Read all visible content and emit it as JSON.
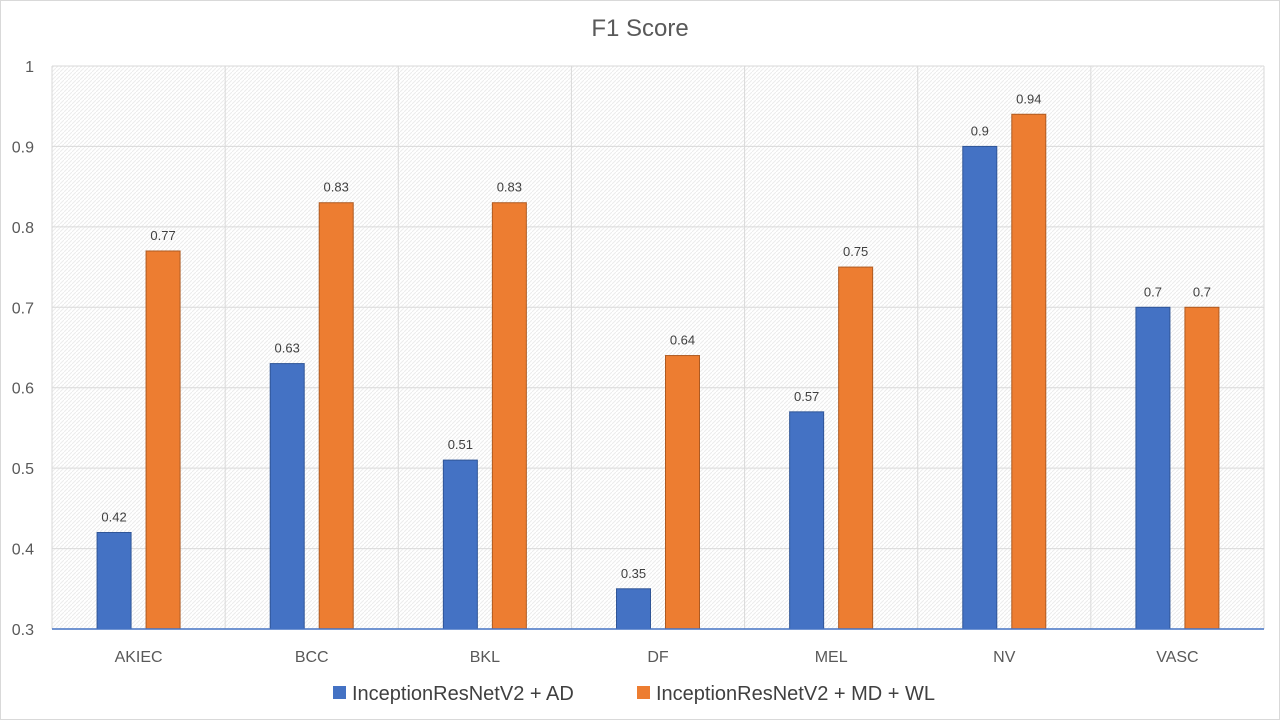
{
  "chart_data": {
    "type": "bar",
    "title": "F1 Score",
    "xlabel": "",
    "ylabel": "",
    "categories": [
      "AKIEC",
      "BCC",
      "BKL",
      "DF",
      "MEL",
      "NV",
      "VASC"
    ],
    "series": [
      {
        "name": "InceptionResNetV2 + AD",
        "color": "#4472c4",
        "values": [
          0.42,
          0.63,
          0.51,
          0.35,
          0.57,
          0.9,
          0.7
        ]
      },
      {
        "name": "InceptionResNetV2 + MD + WL",
        "color": "#ed7d31",
        "values": [
          0.77,
          0.83,
          0.83,
          0.64,
          0.75,
          0.94,
          0.7
        ]
      }
    ],
    "ylim": [
      0.3,
      1
    ],
    "yticks": [
      0.3,
      0.4,
      0.5,
      0.6,
      0.7,
      0.8,
      0.9,
      1
    ],
    "ytick_labels": [
      "0.3",
      "0.4",
      "0.5",
      "0.6",
      "0.7",
      "0.8",
      "0.9",
      "1"
    ],
    "grid": true,
    "legend_position": "bottom"
  }
}
